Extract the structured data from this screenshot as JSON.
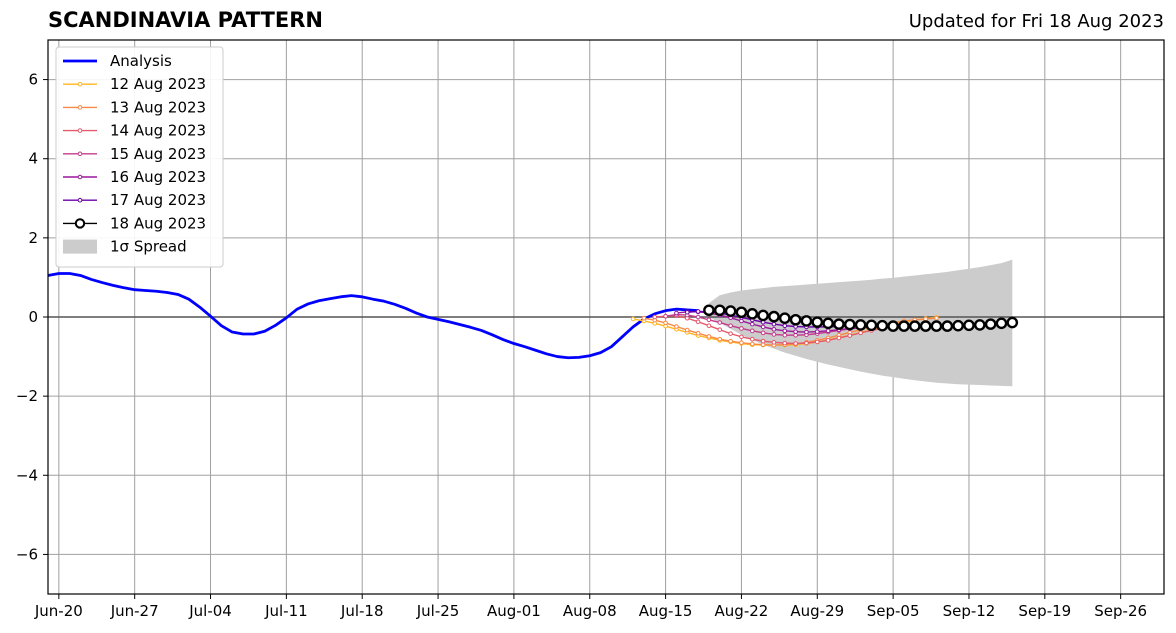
{
  "header": {
    "title": "SCANDINAVIA PATTERN",
    "updated": "Updated for Fri 18 Aug 2023"
  },
  "chart_data": {
    "type": "line",
    "title": "SCANDINAVIA PATTERN",
    "xlabel": "",
    "ylabel": "",
    "ylim": [
      -7,
      7
    ],
    "xlim": [
      "2023-06-19",
      "2023-09-30"
    ],
    "grid": true,
    "legend_position": "top-left",
    "x_ticks": [
      "Jun-20",
      "Jun-27",
      "Jul-04",
      "Jul-11",
      "Jul-18",
      "Jul-25",
      "Aug-01",
      "Aug-08",
      "Aug-15",
      "Aug-22",
      "Aug-29",
      "Sep-05",
      "Sep-12",
      "Sep-19",
      "Sep-26"
    ],
    "x_tick_dates": [
      "2023-06-20",
      "2023-06-27",
      "2023-07-04",
      "2023-07-11",
      "2023-07-18",
      "2023-07-25",
      "2023-08-01",
      "2023-08-08",
      "2023-08-15",
      "2023-08-22",
      "2023-08-29",
      "2023-09-05",
      "2023-09-12",
      "2023-09-19",
      "2023-09-26"
    ],
    "y_ticks": [
      -6,
      -4,
      -2,
      0,
      2,
      4,
      6
    ],
    "y_tick_labels": [
      "−6",
      "−4",
      "−2",
      "0",
      "2",
      "4",
      "6"
    ],
    "legend": [
      "Analysis",
      "12 Aug 2023",
      "13 Aug 2023",
      "14 Aug 2023",
      "15 Aug 2023",
      "16 Aug 2023",
      "17 Aug 2023",
      "18 Aug 2023",
      "1σ Spread"
    ],
    "analysis": {
      "name": "Analysis",
      "color": "#0000ff",
      "points": [
        [
          "2023-06-19",
          1.05
        ],
        [
          "2023-06-20",
          1.1
        ],
        [
          "2023-06-21",
          1.1
        ],
        [
          "2023-06-22",
          1.05
        ],
        [
          "2023-06-23",
          0.95
        ],
        [
          "2023-06-24",
          0.87
        ],
        [
          "2023-06-25",
          0.8
        ],
        [
          "2023-06-26",
          0.74
        ],
        [
          "2023-06-27",
          0.69
        ],
        [
          "2023-06-28",
          0.67
        ],
        [
          "2023-06-29",
          0.65
        ],
        [
          "2023-06-30",
          0.62
        ],
        [
          "2023-07-01",
          0.57
        ],
        [
          "2023-07-02",
          0.45
        ],
        [
          "2023-07-03",
          0.25
        ],
        [
          "2023-07-04",
          0.02
        ],
        [
          "2023-07-05",
          -0.22
        ],
        [
          "2023-07-06",
          -0.38
        ],
        [
          "2023-07-07",
          -0.43
        ],
        [
          "2023-07-08",
          -0.43
        ],
        [
          "2023-07-09",
          -0.36
        ],
        [
          "2023-07-10",
          -0.21
        ],
        [
          "2023-07-11",
          -0.02
        ],
        [
          "2023-07-12",
          0.2
        ],
        [
          "2023-07-13",
          0.33
        ],
        [
          "2023-07-14",
          0.41
        ],
        [
          "2023-07-15",
          0.46
        ],
        [
          "2023-07-16",
          0.51
        ],
        [
          "2023-07-17",
          0.54
        ],
        [
          "2023-07-18",
          0.51
        ],
        [
          "2023-07-19",
          0.45
        ],
        [
          "2023-07-20",
          0.4
        ],
        [
          "2023-07-21",
          0.32
        ],
        [
          "2023-07-22",
          0.22
        ],
        [
          "2023-07-23",
          0.1
        ],
        [
          "2023-07-24",
          0.0
        ],
        [
          "2023-07-25",
          -0.06
        ],
        [
          "2023-07-26",
          -0.12
        ],
        [
          "2023-07-27",
          -0.19
        ],
        [
          "2023-07-28",
          -0.26
        ],
        [
          "2023-07-29",
          -0.34
        ],
        [
          "2023-07-30",
          -0.45
        ],
        [
          "2023-07-31",
          -0.57
        ],
        [
          "2023-08-01",
          -0.67
        ],
        [
          "2023-08-02",
          -0.75
        ],
        [
          "2023-08-03",
          -0.84
        ],
        [
          "2023-08-04",
          -0.93
        ],
        [
          "2023-08-05",
          -1.0
        ],
        [
          "2023-08-06",
          -1.03
        ],
        [
          "2023-08-07",
          -1.02
        ],
        [
          "2023-08-08",
          -0.98
        ],
        [
          "2023-08-09",
          -0.9
        ],
        [
          "2023-08-10",
          -0.75
        ],
        [
          "2023-08-11",
          -0.5
        ],
        [
          "2023-08-12",
          -0.25
        ],
        [
          "2023-08-13",
          -0.05
        ],
        [
          "2023-08-14",
          0.08
        ],
        [
          "2023-08-15",
          0.16
        ],
        [
          "2023-08-16",
          0.2
        ],
        [
          "2023-08-17",
          0.18
        ],
        [
          "2023-08-18",
          0.16
        ]
      ]
    },
    "forecasts": [
      {
        "name": "12 Aug 2023",
        "color": "#ffb521",
        "start": "2023-08-12",
        "values": [
          -0.05,
          -0.1,
          -0.16,
          -0.23,
          -0.31,
          -0.39,
          -0.47,
          -0.53,
          -0.59,
          -0.63,
          -0.67,
          -0.7,
          -0.71,
          -0.71,
          -0.71,
          -0.7,
          -0.67,
          -0.63,
          -0.58,
          -0.52,
          -0.46,
          -0.39,
          -0.32,
          -0.25,
          -0.19,
          -0.13,
          -0.08,
          -0.04,
          -0.01
        ]
      },
      {
        "name": "13 Aug 2023",
        "color": "#f98946",
        "start": "2023-08-13",
        "values": [
          -0.03,
          -0.08,
          -0.15,
          -0.24,
          -0.33,
          -0.41,
          -0.49,
          -0.56,
          -0.61,
          -0.65,
          -0.68,
          -0.7,
          -0.71,
          -0.7,
          -0.68,
          -0.64,
          -0.59,
          -0.53,
          -0.46,
          -0.39,
          -0.32,
          -0.25,
          -0.19,
          -0.14,
          -0.1,
          -0.07,
          -0.05,
          -0.03
        ]
      },
      {
        "name": "14 Aug 2023",
        "color": "#e45a6a",
        "start": "2023-08-14",
        "values": [
          0.0,
          0.02,
          0.03,
          -0.03,
          -0.12,
          -0.22,
          -0.32,
          -0.42,
          -0.5,
          -0.56,
          -0.61,
          -0.64,
          -0.66,
          -0.67,
          -0.66,
          -0.63,
          -0.59,
          -0.53,
          -0.47,
          -0.4,
          -0.34,
          -0.29,
          -0.25,
          -0.22,
          -0.2
        ]
      },
      {
        "name": "15 Aug 2023",
        "color": "#c43b8a",
        "start": "2023-08-15",
        "values": [
          0.02,
          0.06,
          0.05,
          0.0,
          -0.07,
          -0.14,
          -0.22,
          -0.29,
          -0.35,
          -0.4,
          -0.44,
          -0.46,
          -0.46,
          -0.45,
          -0.42,
          -0.38,
          -0.34,
          -0.3,
          -0.27,
          -0.25,
          -0.24,
          -0.23,
          -0.22
        ]
      },
      {
        "name": "16 Aug 2023",
        "color": "#9a179b",
        "start": "2023-08-16",
        "values": [
          0.1,
          0.13,
          0.13,
          0.1,
          0.05,
          -0.02,
          -0.1,
          -0.18,
          -0.25,
          -0.31,
          -0.35,
          -0.37,
          -0.38,
          -0.37,
          -0.35,
          -0.32,
          -0.29,
          -0.27,
          -0.25,
          -0.24,
          -0.23
        ]
      },
      {
        "name": "17 Aug 2023",
        "color": "#6a00a8",
        "start": "2023-08-17",
        "values": [
          0.12,
          0.14,
          0.13,
          0.1,
          0.05,
          -0.01,
          -0.07,
          -0.13,
          -0.18,
          -0.22,
          -0.24,
          -0.25,
          -0.25,
          -0.25,
          -0.24,
          -0.23,
          -0.22,
          -0.21,
          -0.2
        ]
      }
    ],
    "current_forecast": {
      "name": "18 Aug 2023",
      "color": "#000000",
      "start": "2023-08-19",
      "values": [
        0.17,
        0.17,
        0.15,
        0.12,
        0.08,
        0.04,
        0.01,
        -0.03,
        -0.07,
        -0.1,
        -0.13,
        -0.16,
        -0.18,
        -0.19,
        -0.2,
        -0.21,
        -0.22,
        -0.23,
        -0.23,
        -0.23,
        -0.23,
        -0.23,
        -0.23,
        -0.22,
        -0.21,
        -0.2,
        -0.18,
        -0.16,
        -0.14
      ]
    },
    "spread": {
      "name": "1σ Spread",
      "color": "#cccccc",
      "start": "2023-08-19",
      "upper": [
        0.35,
        0.55,
        0.62,
        0.67,
        0.7,
        0.73,
        0.76,
        0.78,
        0.8,
        0.82,
        0.84,
        0.86,
        0.88,
        0.9,
        0.92,
        0.94,
        0.97,
        0.99,
        1.02,
        1.05,
        1.08,
        1.11,
        1.14,
        1.18,
        1.22,
        1.26,
        1.31,
        1.36,
        1.45
      ],
      "lower": [
        0.0,
        -0.15,
        -0.3,
        -0.45,
        -0.58,
        -0.7,
        -0.8,
        -0.9,
        -0.98,
        -1.06,
        -1.13,
        -1.2,
        -1.26,
        -1.32,
        -1.38,
        -1.43,
        -1.48,
        -1.52,
        -1.56,
        -1.6,
        -1.63,
        -1.66,
        -1.68,
        -1.7,
        -1.71,
        -1.72,
        -1.73,
        -1.74,
        -1.75
      ]
    }
  }
}
